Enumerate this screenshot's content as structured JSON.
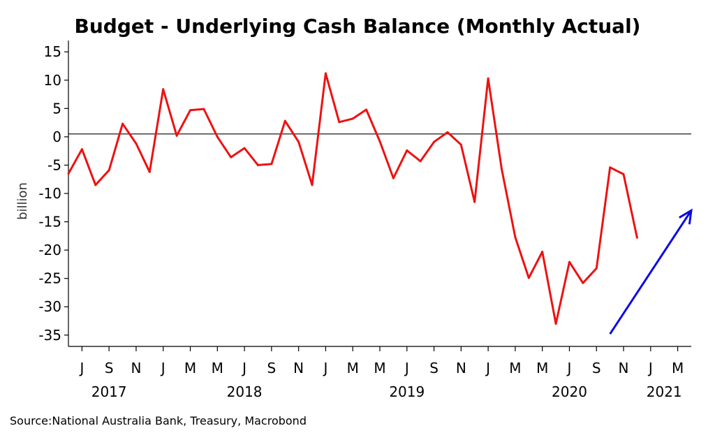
{
  "chart_data": {
    "type": "line",
    "title": "Budget - Underlying Cash Balance (Monthly Actual)",
    "ylabel": "billion",
    "source": "Source:National Australia Bank, Treasury, Macrobond",
    "ylim": [
      -37,
      17
    ],
    "yticks": [
      15,
      10,
      5,
      0,
      -5,
      -10,
      -15,
      -20,
      -25,
      -30,
      -35
    ],
    "x_start": "2017-06",
    "x_end": "2021-04",
    "month_ticks": [
      {
        "date": "2017-07",
        "label": "J"
      },
      {
        "date": "2017-09",
        "label": "S"
      },
      {
        "date": "2017-11",
        "label": "N"
      },
      {
        "date": "2018-01",
        "label": "J"
      },
      {
        "date": "2018-03",
        "label": "M"
      },
      {
        "date": "2018-05",
        "label": "M"
      },
      {
        "date": "2018-07",
        "label": "J"
      },
      {
        "date": "2018-09",
        "label": "S"
      },
      {
        "date": "2018-11",
        "label": "N"
      },
      {
        "date": "2019-01",
        "label": "J"
      },
      {
        "date": "2019-03",
        "label": "M"
      },
      {
        "date": "2019-05",
        "label": "M"
      },
      {
        "date": "2019-07",
        "label": "J"
      },
      {
        "date": "2019-09",
        "label": "S"
      },
      {
        "date": "2019-11",
        "label": "N"
      },
      {
        "date": "2020-01",
        "label": "J"
      },
      {
        "date": "2020-03",
        "label": "M"
      },
      {
        "date": "2020-05",
        "label": "M"
      },
      {
        "date": "2020-07",
        "label": "J"
      },
      {
        "date": "2020-09",
        "label": "S"
      },
      {
        "date": "2020-11",
        "label": "N"
      },
      {
        "date": "2021-01",
        "label": "J"
      },
      {
        "date": "2021-03",
        "label": "M"
      }
    ],
    "year_labels": [
      {
        "date": "2017-09",
        "label": "2017"
      },
      {
        "date": "2018-07",
        "label": "2018"
      },
      {
        "date": "2019-07",
        "label": "2019"
      },
      {
        "date": "2020-07",
        "label": "2020"
      },
      {
        "date": "2021-02",
        "label": "2021"
      }
    ],
    "reference_line": 0.5,
    "series": [
      {
        "color": "#ee1111",
        "points": [
          [
            "2017-06",
            -6.5
          ],
          [
            "2017-07",
            -2.2
          ],
          [
            "2017-08",
            -8.5
          ],
          [
            "2017-09",
            -5.9
          ],
          [
            "2017-10",
            2.3
          ],
          [
            "2017-11",
            -1.2
          ],
          [
            "2017-12",
            -6.2
          ],
          [
            "2018-01",
            8.4
          ],
          [
            "2018-02",
            0.2
          ],
          [
            "2018-03",
            4.7
          ],
          [
            "2018-04",
            4.9
          ],
          [
            "2018-05",
            0.0
          ],
          [
            "2018-06",
            -3.6
          ],
          [
            "2018-07",
            -2.0
          ],
          [
            "2018-08",
            -5.0
          ],
          [
            "2018-09",
            -4.8
          ],
          [
            "2018-10",
            2.8
          ],
          [
            "2018-11",
            -0.9
          ],
          [
            "2018-12",
            -8.5
          ],
          [
            "2019-01",
            11.2
          ],
          [
            "2019-02",
            2.6
          ],
          [
            "2019-03",
            3.2
          ],
          [
            "2019-04",
            4.8
          ],
          [
            "2019-05",
            -0.8
          ],
          [
            "2019-06",
            -7.3
          ],
          [
            "2019-07",
            -2.4
          ],
          [
            "2019-08",
            -4.3
          ],
          [
            "2019-09",
            -0.9
          ],
          [
            "2019-10",
            0.8
          ],
          [
            "2019-11",
            -1.4
          ],
          [
            "2019-12",
            -11.5
          ],
          [
            "2020-01",
            10.3
          ],
          [
            "2020-02",
            -5.7
          ],
          [
            "2020-03",
            -17.7
          ],
          [
            "2020-04",
            -24.9
          ],
          [
            "2020-05",
            -20.3
          ],
          [
            "2020-06",
            -33.0
          ],
          [
            "2020-07",
            -22.1
          ],
          [
            "2020-08",
            -25.8
          ],
          [
            "2020-09",
            -23.2
          ],
          [
            "2020-10",
            -5.4
          ],
          [
            "2020-11",
            -6.6
          ],
          [
            "2020-12",
            -17.8
          ]
        ]
      }
    ],
    "annotations": [
      {
        "type": "arrow",
        "color": "#0a0ae6",
        "from": [
          "2020-10",
          "-34.8"
        ],
        "to": [
          "2021-04",
          "-13.0"
        ]
      }
    ],
    "grid": false
  }
}
